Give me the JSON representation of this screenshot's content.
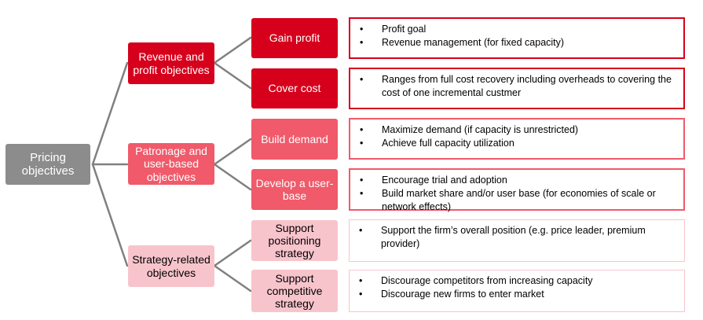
{
  "root": {
    "label": "Pricing objectives"
  },
  "groups": [
    {
      "label": "Revenue and profit objectives",
      "items": [
        {
          "label": "Gain profit",
          "bullets": [
            "Profit goal",
            "Revenue management (for fixed capacity)"
          ]
        },
        {
          "label": "Cover cost",
          "bullets": [
            "Ranges from full cost recovery including overheads to covering the cost of one incremental custmer"
          ]
        }
      ]
    },
    {
      "label": "Patronage and user-based objectives",
      "items": [
        {
          "label": "Build demand",
          "bullets": [
            "Maximize demand (if capacity is unrestricted)",
            "Achieve full capacity utilization"
          ]
        },
        {
          "label": "Develop a user-base",
          "bullets": [
            "Encourage trial and adoption",
            "Build market share and/or user base (for economies of scale or network effects)"
          ]
        }
      ]
    },
    {
      "label": "Strategy-related objectives",
      "items": [
        {
          "label": "Support positioning strategy",
          "bullets": [
            "Support the firm’s overall position (e.g. price leader, premium provider)"
          ]
        },
        {
          "label": "Support competitive strategy",
          "bullets": [
            "Discourage competitors from increasing capacity",
            "Discourage new firms to enter market"
          ]
        }
      ]
    }
  ],
  "colors": {
    "root": "#8c8c8c",
    "dark": "#d6001c",
    "mid": "#f05a6a",
    "light": "#f8c4cc",
    "connector": "#808080"
  },
  "bullet_glyph": "•"
}
